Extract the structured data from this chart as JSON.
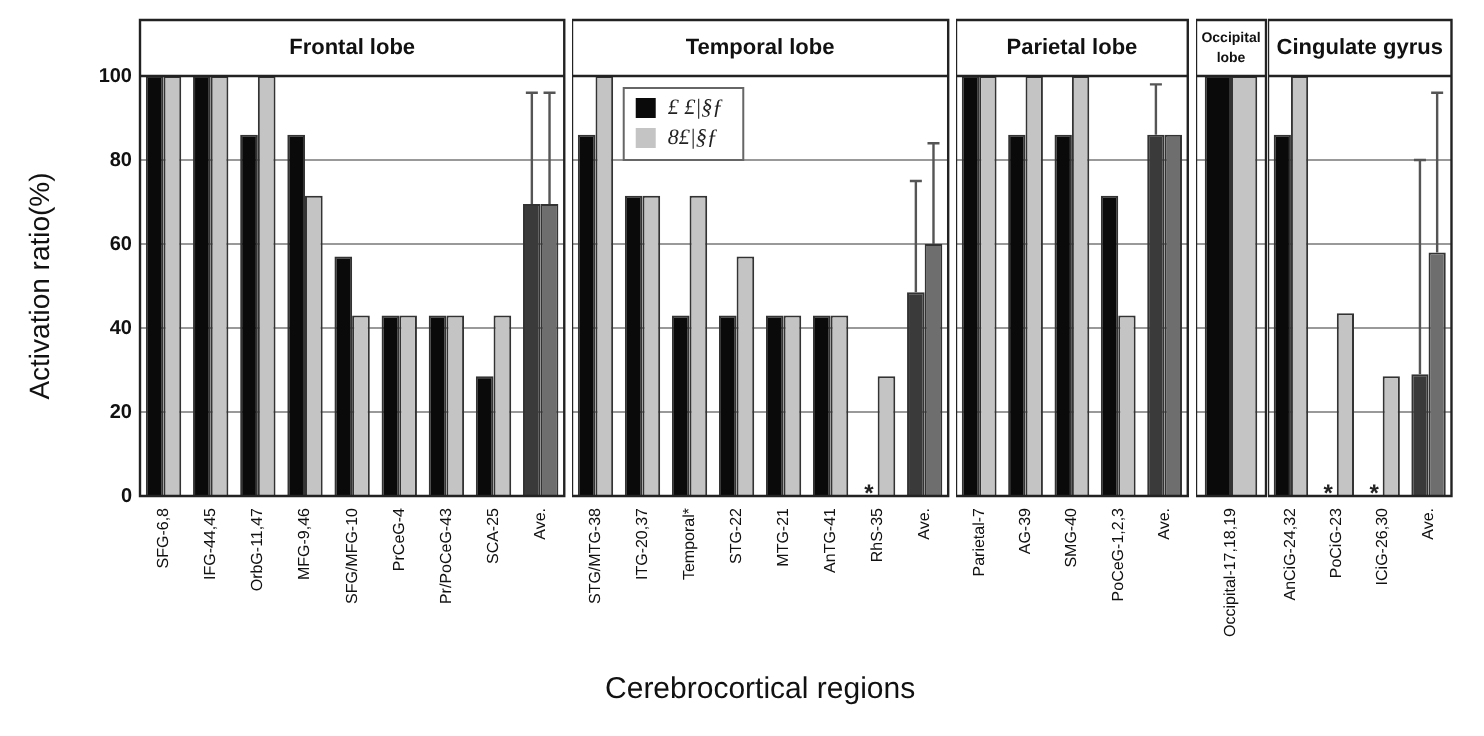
{
  "chart_data": [
    {
      "type": "bar",
      "title": "Frontal lobe",
      "ylabel": "Activation ratio(%)",
      "categories": [
        "SFG-6,8",
        "IFG-44,45",
        "OrbG-11,47",
        "MFG-9,46",
        "SFG/MFG-10",
        "PrCeG-4",
        "Pr/PoCeG-43",
        "SCA-25",
        "Ave."
      ],
      "series": [
        {
          "color": "#0a0a0a",
          "colors": [
            "#0a0a0a",
            "#0a0a0a",
            "#0a0a0a",
            "#0a0a0a",
            "#0a0a0a",
            "#0a0a0a",
            "#0a0a0a",
            "#0a0a0a",
            "#3a3a3a"
          ],
          "values": [
            100,
            100,
            86,
            86,
            57,
            43,
            43,
            28.5,
            69.5
          ],
          "errors": [
            null,
            null,
            null,
            null,
            null,
            null,
            null,
            null,
            [
              69.5,
              96
            ]
          ]
        },
        {
          "color": "#c4c4c4",
          "colors": [
            "#c4c4c4",
            "#c4c4c4",
            "#c4c4c4",
            "#c4c4c4",
            "#c4c4c4",
            "#c4c4c4",
            "#c4c4c4",
            "#c4c4c4",
            "#6e6e6e"
          ],
          "values": [
            100,
            100,
            100,
            71.5,
            43,
            43,
            43,
            43,
            69.5
          ],
          "errors": [
            null,
            null,
            null,
            null,
            null,
            null,
            null,
            null,
            [
              69.5,
              96
            ]
          ]
        }
      ],
      "ylim": [
        0,
        100
      ],
      "yticks": [
        0,
        20,
        40,
        60,
        80,
        100
      ],
      "grid": "y"
    },
    {
      "type": "bar",
      "title": "Temporal lobe",
      "xlabel": "Cerebrocortical regions",
      "categories": [
        "STG/MTG-38",
        "ITG-20,37",
        "Temporal*",
        "STG-22",
        "MTG-21",
        "AnTG-41",
        "RhS-35",
        "Ave."
      ],
      "series": [
        {
          "name": "£ £|§ƒ",
          "color": "#0a0a0a",
          "colors": [
            "#0a0a0a",
            "#0a0a0a",
            "#0a0a0a",
            "#0a0a0a",
            "#0a0a0a",
            "#0a0a0a",
            "#0a0a0a",
            "#3a3a3a"
          ],
          "values": [
            86,
            71.5,
            43,
            43,
            43,
            43,
            0,
            48.5
          ],
          "errors": [
            null,
            null,
            null,
            null,
            null,
            null,
            null,
            [
              48.5,
              75
            ]
          ]
        },
        {
          "name": "8£|§ƒ",
          "color": "#c4c4c4",
          "colors": [
            "#c4c4c4",
            "#c4c4c4",
            "#c4c4c4",
            "#c4c4c4",
            "#c4c4c4",
            "#c4c4c4",
            "#c4c4c4",
            "#6e6e6e"
          ],
          "values": [
            100,
            71.5,
            71.5,
            57,
            43,
            43,
            28.5,
            60
          ],
          "errors": [
            null,
            null,
            null,
            null,
            null,
            null,
            null,
            [
              60,
              84
            ]
          ]
        }
      ],
      "ylim": [
        0,
        100
      ],
      "yticks": [
        0,
        20,
        40,
        60,
        80,
        100
      ],
      "grid": "y",
      "tick_labels": "x",
      "legend": "top left",
      "annotations": [
        {
          "text": "*",
          "x": "RhS-35",
          "y": 0
        }
      ]
    },
    {
      "type": "bar",
      "title": "Parietal lobe",
      "categories": [
        "Parietal-7",
        "AG-39",
        "SMG-40",
        "PoCeG-1,2,3",
        "Ave."
      ],
      "series": [
        {
          "color": "#0a0a0a",
          "colors": [
            "#0a0a0a",
            "#0a0a0a",
            "#0a0a0a",
            "#0a0a0a",
            "#3a3a3a"
          ],
          "values": [
            100,
            86,
            86,
            71.5,
            86
          ],
          "errors": [
            null,
            null,
            null,
            null,
            [
              86,
              98
            ]
          ]
        },
        {
          "color": "#c4c4c4",
          "colors": [
            "#c4c4c4",
            "#c4c4c4",
            "#c4c4c4",
            "#c4c4c4",
            "#6e6e6e"
          ],
          "values": [
            100,
            100,
            100,
            43,
            86
          ]
        }
      ],
      "ylim": [
        0,
        100
      ],
      "yticks": [
        0,
        20,
        40,
        60,
        80,
        100
      ],
      "grid": "y",
      "tick_labels": "x"
    },
    {
      "type": "bar",
      "title": "Occipital lobe",
      "categories": [
        "Occipital-17,18,19"
      ],
      "series": [
        {
          "color": "#0a0a0a",
          "values": [
            100
          ]
        },
        {
          "color": "#c4c4c4",
          "values": [
            100
          ]
        }
      ],
      "ylim": [
        0,
        100
      ],
      "yticks": [
        0,
        20,
        40,
        60,
        80,
        100
      ],
      "grid": "y",
      "tick_labels": "x"
    },
    {
      "type": "bar",
      "title": "Cingulate gyrus",
      "categories": [
        "AnCiG-24,32",
        "PoCiG-23",
        "ICiG-26,30",
        "Ave."
      ],
      "series": [
        {
          "color": "#0a0a0a",
          "colors": [
            "#0a0a0a",
            "#0a0a0a",
            "#0a0a0a",
            "#3a3a3a"
          ],
          "values": [
            86,
            0,
            0,
            29
          ],
          "errors": [
            null,
            null,
            null,
            [
              29,
              80
            ]
          ]
        },
        {
          "color": "#c4c4c4",
          "colors": [
            "#c4c4c4",
            "#c4c4c4",
            "#c4c4c4",
            "#6e6e6e"
          ],
          "values": [
            100,
            43.5,
            28.5,
            58
          ],
          "errors": [
            null,
            null,
            null,
            [
              58,
              96
            ]
          ]
        }
      ],
      "ylim": [
        0,
        100
      ],
      "yticks": [
        0,
        20,
        40,
        60,
        80,
        100
      ],
      "grid": "y",
      "tick_labels": "x",
      "annotations": [
        {
          "text": "*",
          "x": "PoCiG-23",
          "y": 0
        },
        {
          "text": "*",
          "x": "ICiG-26,30",
          "y": 0
        }
      ]
    }
  ]
}
